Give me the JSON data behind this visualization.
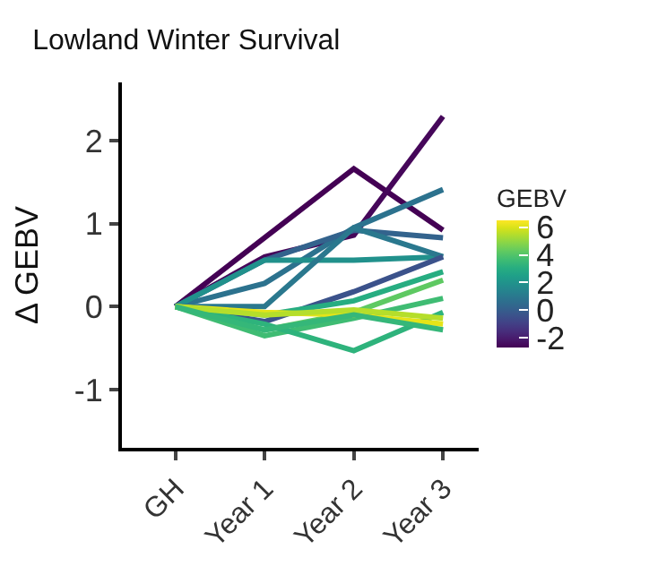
{
  "chart_data": {
    "type": "line",
    "title": "Lowland Winter Survival",
    "ylabel": "Δ GEBV",
    "clabel": "GEBV",
    "categories": [
      "GH",
      "Year 1",
      "Year 2",
      "Year 3"
    ],
    "series": [
      {
        "color": "#440154",
        "values": [
          0,
          0.83,
          1.66,
          0.92
        ]
      },
      {
        "color": "#46075a",
        "values": [
          0,
          0.6,
          0.86,
          2.29
        ]
      },
      {
        "color": "#2c728e",
        "values": [
          0,
          0.28,
          0.95,
          1.41
        ]
      },
      {
        "color": "#33638d",
        "values": [
          0,
          0.56,
          0.92,
          0.83
        ]
      },
      {
        "color": "#21918c",
        "values": [
          0,
          0.56,
          0.56,
          0.6
        ]
      },
      {
        "color": "#2a788e",
        "values": [
          0,
          0,
          0.95,
          0.6
        ]
      },
      {
        "color": "#3b528b",
        "values": [
          0,
          -0.18,
          0.18,
          0.6
        ]
      },
      {
        "color": "#27ad81",
        "values": [
          0,
          -0.1,
          0.07,
          0.42
        ]
      },
      {
        "color": "#5ec962",
        "values": [
          0,
          -0.28,
          -0.07,
          0.32
        ]
      },
      {
        "color": "#3fbc73",
        "values": [
          0,
          -0.35,
          -0.14,
          0.1
        ]
      },
      {
        "color": "#2eb37c",
        "values": [
          0,
          -0.21,
          -0.53,
          -0.07
        ]
      },
      {
        "color": "#e5e419",
        "values": [
          0,
          -0.07,
          -0.1,
          -0.21
        ]
      },
      {
        "color": "#b5de2b",
        "values": [
          0,
          -0.1,
          -0.04,
          -0.14
        ]
      },
      {
        "color": "#35b779",
        "values": [
          0,
          -0.28,
          -0.1,
          -0.28
        ]
      }
    ],
    "ylim": [
      -1.7,
      2.7
    ],
    "yticks": [
      -1,
      0,
      1,
      2
    ],
    "clim": [
      -2.7,
      6.5
    ],
    "cticks": [
      -2,
      0,
      2,
      4,
      6
    ],
    "grid": false,
    "marker": "none",
    "line_style": "solid"
  }
}
